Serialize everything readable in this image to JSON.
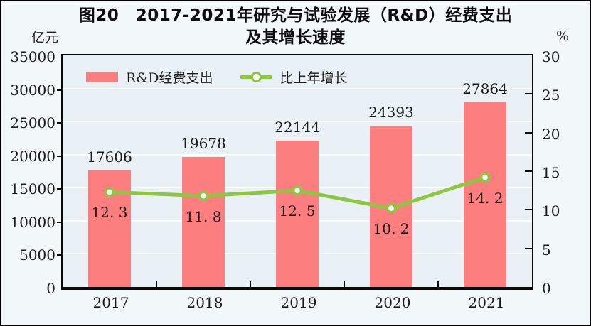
{
  "title": {
    "line1": "图20　2017-2021年研究与试验发展（R&D）经费支出",
    "line2": "及其增长速度"
  },
  "axis_units": {
    "left": "亿元",
    "right": "%"
  },
  "legend": {
    "bar_label": "R&D经费支出",
    "line_label": "比上年增长"
  },
  "colors": {
    "bar": "#FC7E7E",
    "line": "#8DC63F",
    "marker_fill": "#FFFFFF",
    "plot_bg": "#E9F1F6",
    "gridline": "#FFFFFF",
    "outer_bg": "#F2F7F9",
    "axis": "#0A0A0A",
    "text": "#1A1A1A"
  },
  "chart_data": {
    "type": "bar+line combo",
    "categories": [
      "2017",
      "2018",
      "2019",
      "2020",
      "2021"
    ],
    "series": [
      {
        "name": "R&D经费支出",
        "type": "bar",
        "axis": "left",
        "values": [
          17606,
          19678,
          22144,
          24393,
          27864
        ],
        "labels": [
          "17606",
          "19678",
          "22144",
          "24393",
          "27864"
        ]
      },
      {
        "name": "比上年增长",
        "type": "line",
        "axis": "right",
        "values": [
          12.3,
          11.8,
          12.5,
          10.2,
          14.2
        ],
        "labels": [
          "12. 3",
          "11. 8",
          "12. 5",
          "10. 2",
          "14. 2"
        ]
      }
    ],
    "left_axis": {
      "label": "亿元",
      "min": 0,
      "max": 35000,
      "ticks": [
        0,
        5000,
        10000,
        15000,
        20000,
        25000,
        30000,
        35000
      ]
    },
    "right_axis": {
      "label": "%",
      "min": 0,
      "max": 30,
      "ticks": [
        0,
        5,
        10,
        15,
        20,
        25,
        30
      ]
    },
    "grid": true,
    "legend_position": "top-left-inside"
  }
}
